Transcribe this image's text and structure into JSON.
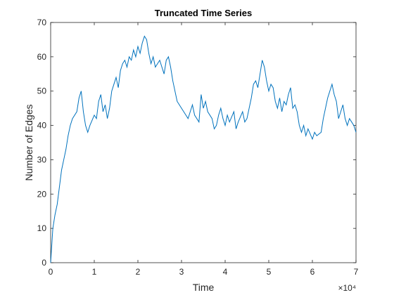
{
  "chart_data": {
    "type": "line",
    "title": "Truncated Time Series",
    "xlabel": "Time",
    "ylabel": "Number of Edges",
    "x_multiplier": "×10⁴",
    "x": [
      0,
      500,
      1000,
      1500,
      2000,
      2500,
      3000,
      3500,
      4000,
      4500,
      5000,
      6000,
      6500,
      7000,
      7500,
      8000,
      8500,
      9000,
      10000,
      10500,
      11000,
      11500,
      12000,
      12500,
      13000,
      13500,
      14000,
      14500,
      15000,
      15500,
      16000,
      16500,
      17000,
      17500,
      18000,
      18500,
      19000,
      19500,
      20000,
      20500,
      21000,
      21500,
      22000,
      22500,
      23000,
      23500,
      24000,
      25000,
      26000,
      26500,
      27000,
      27500,
      28000,
      28500,
      29000,
      29500,
      30000,
      31000,
      31500,
      32000,
      32500,
      33000,
      34000,
      34500,
      35000,
      35500,
      36000,
      37000,
      37500,
      38000,
      38500,
      39000,
      39500,
      40000,
      40500,
      41000,
      42000,
      42500,
      43000,
      44000,
      44500,
      45000,
      45500,
      46000,
      46500,
      47000,
      47500,
      48000,
      48500,
      49000,
      49500,
      50000,
      50500,
      51000,
      51500,
      52000,
      52500,
      53000,
      53500,
      54000,
      54500,
      55000,
      55500,
      56000,
      56500,
      57000,
      57500,
      58000,
      58500,
      59000,
      60000,
      60500,
      61000,
      62000,
      62500,
      63000,
      63500,
      64000,
      64500,
      65000,
      65500,
      66000,
      66500,
      67000,
      67500,
      68000,
      68500,
      69000,
      69500,
      70000
    ],
    "series": [
      {
        "name": "Number of Edges",
        "color": "#0072bd",
        "values": [
          0,
          10,
          14,
          17,
          22,
          27,
          30,
          33,
          37,
          40,
          42,
          44,
          48,
          50,
          44,
          40,
          38,
          40,
          43,
          42,
          47,
          49,
          44,
          46,
          42,
          45,
          50,
          52,
          54,
          51,
          56,
          58,
          59,
          57,
          60,
          59,
          62,
          60,
          63,
          61,
          64,
          66,
          65,
          61,
          58,
          60,
          57,
          59,
          55,
          59,
          60,
          57,
          53,
          50,
          47,
          46,
          45,
          43,
          42,
          44,
          46,
          43,
          41,
          49,
          45,
          47,
          44,
          42,
          39,
          40,
          43,
          45,
          42,
          40,
          43,
          41,
          44,
          39,
          41,
          44,
          41,
          42,
          45,
          48,
          52,
          53,
          51,
          55,
          59,
          57,
          53,
          50,
          52,
          51,
          47,
          45,
          48,
          44,
          47,
          46,
          49,
          51,
          45,
          46,
          44,
          40,
          38,
          40,
          37,
          39,
          36,
          38,
          37,
          38,
          42,
          45,
          48,
          50,
          52,
          49,
          47,
          42,
          44,
          46,
          42,
          40,
          42,
          41,
          40,
          38
        ]
      }
    ],
    "xlim": [
      0,
      70000
    ],
    "ylim": [
      0,
      70
    ],
    "xticks": [
      {
        "value": 0,
        "label": "0"
      },
      {
        "value": 10000,
        "label": "1"
      },
      {
        "value": 20000,
        "label": "2"
      },
      {
        "value": 30000,
        "label": "3"
      },
      {
        "value": 40000,
        "label": "4"
      },
      {
        "value": 50000,
        "label": "5"
      },
      {
        "value": 60000,
        "label": "6"
      },
      {
        "value": 70000,
        "label": "7"
      }
    ],
    "yticks": [
      0,
      10,
      20,
      30,
      40,
      50,
      60,
      70
    ]
  }
}
